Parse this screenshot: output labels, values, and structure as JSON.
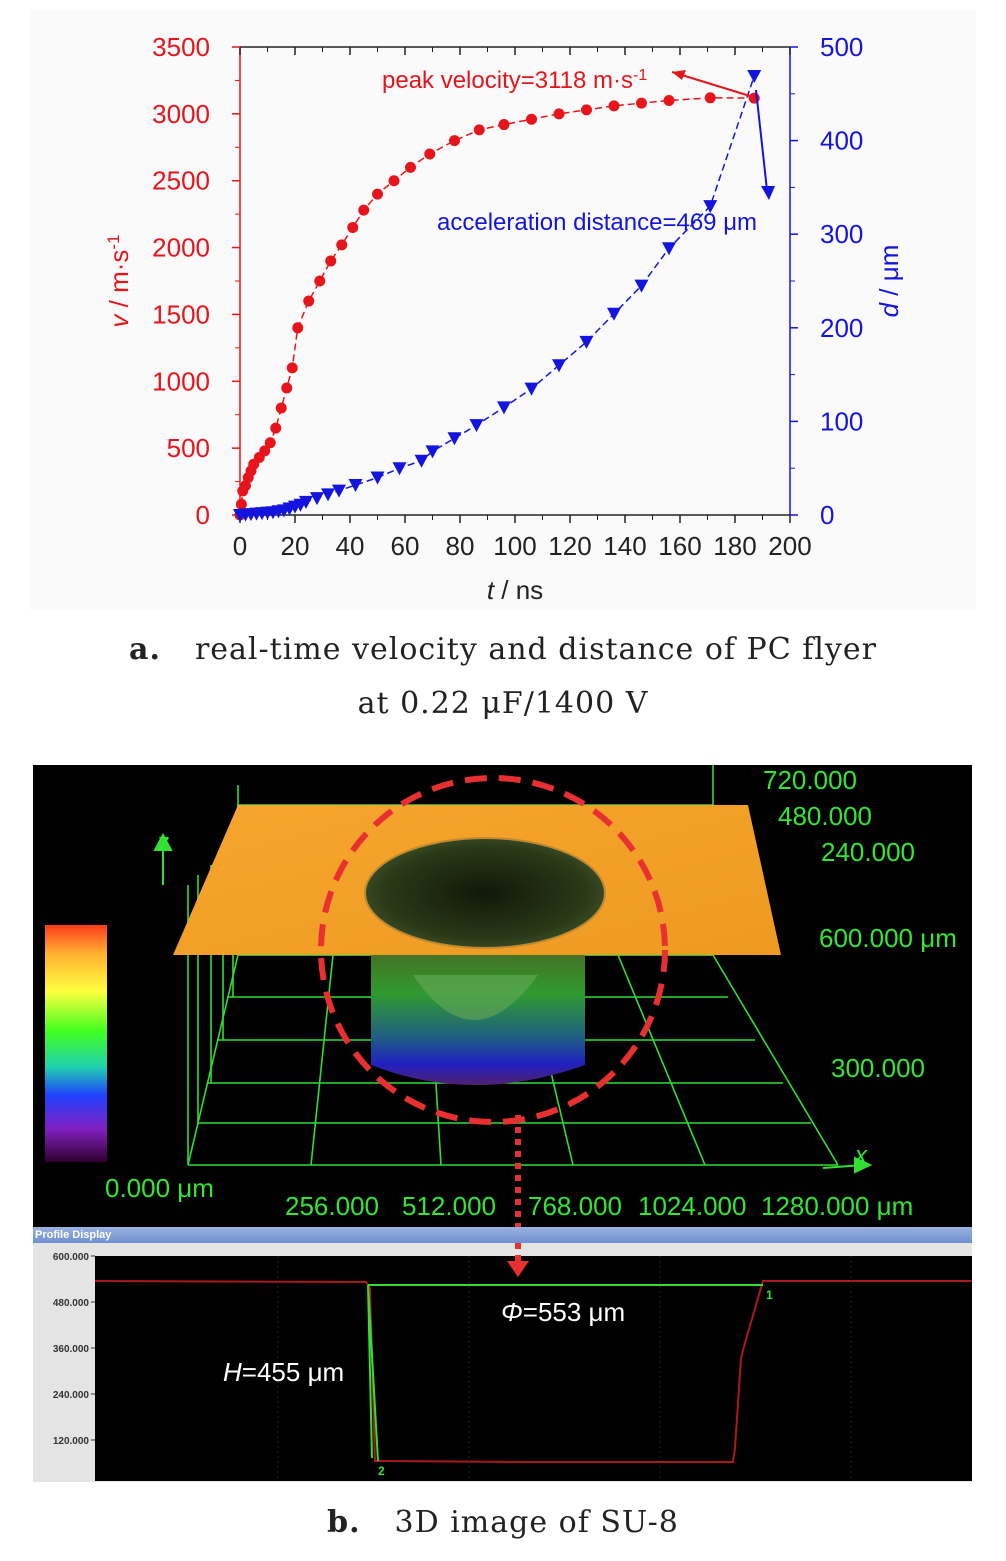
{
  "chart_data": [
    {
      "type": "line",
      "x_axis": {
        "label_italic": "t",
        "label_rest": " / ns",
        "range": [
          0,
          200
        ],
        "ticks": [
          "0",
          "20",
          "40",
          "60",
          "80",
          "100",
          "120",
          "140",
          "160",
          "180",
          "200"
        ]
      },
      "y_left": {
        "label_italic": "v",
        "label_rest": " / m·s",
        "label_sup": "-1",
        "range": [
          0,
          3500
        ],
        "ticks": [
          "0",
          "500",
          "1000",
          "1500",
          "2000",
          "2500",
          "3000",
          "3500"
        ]
      },
      "y_right": {
        "label_italic": "d",
        "label_rest": " / μm",
        "range": [
          0,
          500
        ],
        "ticks": [
          "0",
          "100",
          "200",
          "300",
          "400",
          "500"
        ]
      },
      "series": [
        {
          "color": "#e8141b",
          "axis": "left",
          "marker": "circle",
          "x": [
            0,
            0.5,
            1,
            2,
            3,
            4,
            5,
            7,
            9,
            11,
            13,
            15,
            17,
            19,
            21,
            25,
            29,
            33,
            37,
            41,
            45,
            50,
            56,
            62,
            69,
            78,
            87,
            96,
            106,
            116,
            126,
            136,
            146,
            156,
            171,
            187
          ],
          "y": [
            0,
            80,
            180,
            220,
            280,
            330,
            380,
            430,
            480,
            540,
            650,
            800,
            950,
            1100,
            1400,
            1600,
            1750,
            1900,
            2020,
            2150,
            2280,
            2400,
            2500,
            2600,
            2700,
            2800,
            2880,
            2920,
            2960,
            3000,
            3030,
            3060,
            3080,
            3100,
            3120,
            3118
          ]
        },
        {
          "color": "#1414e0",
          "axis": "right",
          "marker": "triangle-down",
          "x": [
            0,
            2,
            4,
            6,
            8,
            10,
            12,
            14,
            16,
            18,
            20,
            22,
            24,
            28,
            32,
            36,
            42,
            50,
            58,
            66,
            70,
            78,
            86,
            96,
            106,
            116,
            126,
            136,
            146,
            156,
            171,
            187
          ],
          "y": [
            0,
            0.5,
            1,
            1.5,
            2,
            2.5,
            3,
            4,
            5,
            7,
            9,
            11,
            14,
            18,
            22,
            26,
            32,
            40,
            50,
            58,
            68,
            82,
            96,
            115,
            135,
            160,
            185,
            215,
            245,
            285,
            330,
            469
          ]
        }
      ],
      "annotations": [
        {
          "text": "peak velocity=3118 m·s",
          "sup": "-1",
          "color": "#e8141b"
        },
        {
          "text": "acceleration distance=469 μm",
          "color": "#1414e0"
        }
      ]
    },
    {
      "type": "line",
      "title": "Profile Display",
      "y_ticks": [
        "600.000",
        "480.000",
        "360.000",
        "240.000",
        "120.000"
      ],
      "markers": [
        "1",
        "2"
      ],
      "annotations": [
        {
          "text_italic": "Φ",
          "text": "=553 μm"
        },
        {
          "text_italic": "H",
          "text": "=455 μm"
        }
      ]
    }
  ],
  "captions": {
    "a_letter": "a.",
    "a_line1": "real-time velocity and distance of PC flyer",
    "a_line2": "at 0.22 μF/1400 V",
    "b_letter": "b.",
    "b_text": "3D image of SU-8"
  },
  "image3d": {
    "z_label": "z",
    "x_label": "x",
    "right_labels": [
      "720.000",
      "480.000",
      "240.000",
      "600.000 μm",
      "300.000"
    ],
    "scale_min": "0.000 μm",
    "x_ticks": [
      "256.000",
      "512.000",
      "768.000",
      "1024.000",
      "1280.000 μm"
    ],
    "colors": {
      "surface": "#f5a029",
      "grid": "#33dd33",
      "label": "#33e633",
      "circle": "#e83030"
    }
  }
}
